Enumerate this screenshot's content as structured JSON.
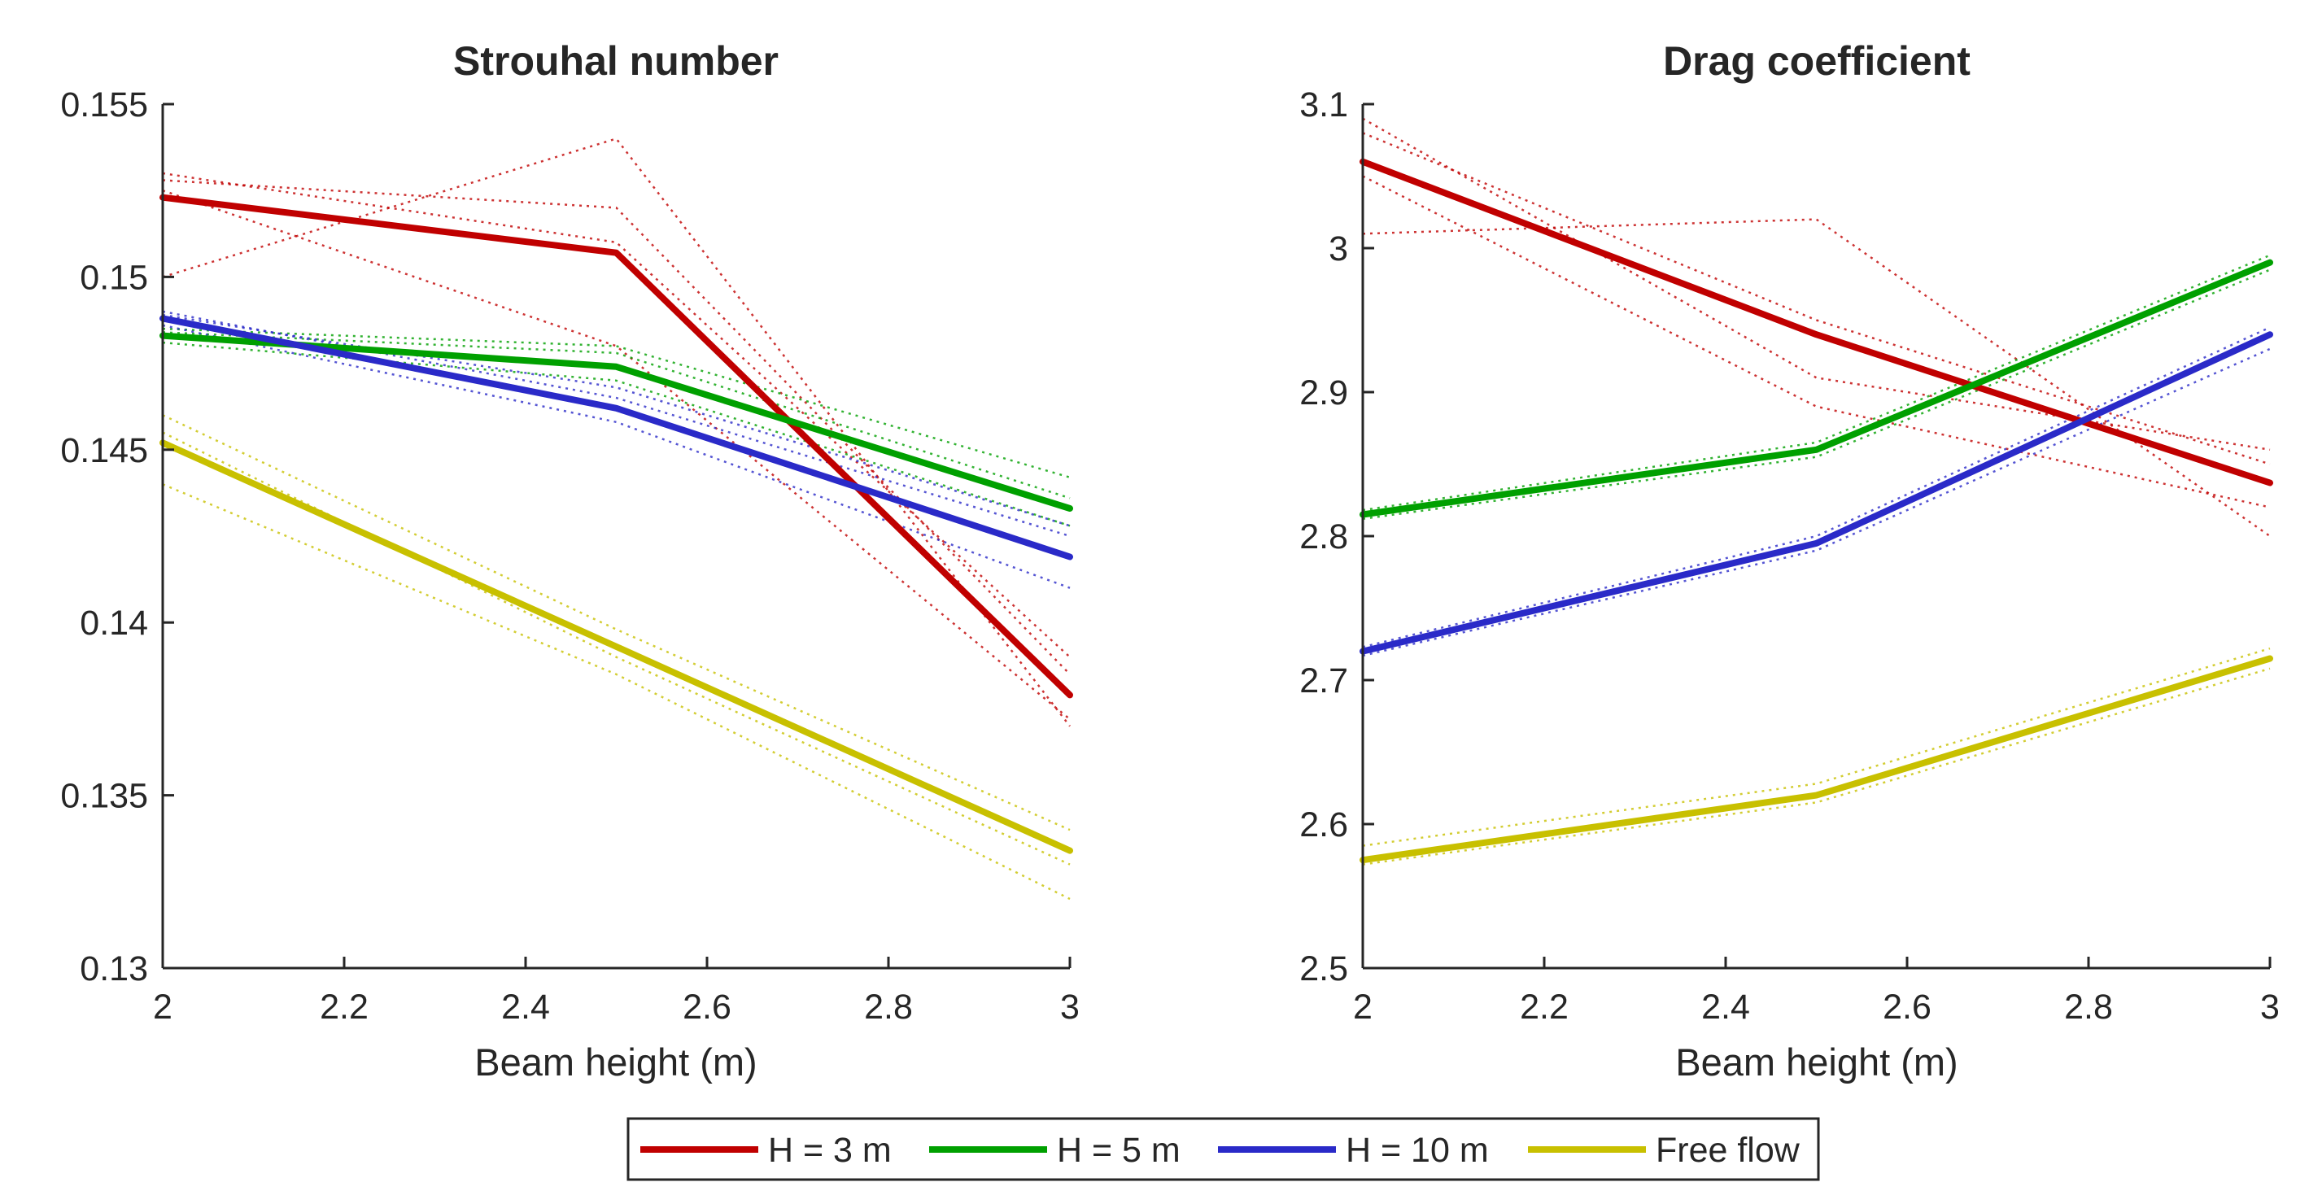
{
  "chart_data": [
    {
      "type": "line",
      "title": "Strouhal number",
      "xlabel": "Beam height (m)",
      "ylabel": "",
      "x": [
        2,
        2.5,
        3
      ],
      "xlim": [
        2,
        3
      ],
      "ylim": [
        0.13,
        0.155
      ],
      "xticks": [
        "2",
        "2.2",
        "2.4",
        "2.6",
        "2.8",
        "3"
      ],
      "yticks": [
        "0.13",
        "0.135",
        "0.14",
        "0.145",
        "0.15",
        "0.155"
      ],
      "grid": false,
      "series": [
        {
          "name": "H = 3 m",
          "color": "#c00000",
          "values": [
            0.1523,
            0.1507,
            0.1379
          ],
          "runs": [
            [
              0.153,
              0.151,
              0.139
            ],
            [
              0.15,
              0.154,
              0.137
            ],
            [
              0.1528,
              0.152,
              0.1385
            ],
            [
              0.1525,
              0.148,
              0.1372
            ]
          ]
        },
        {
          "name": "H = 5 m",
          "color": "#00a000",
          "values": [
            0.1483,
            0.1474,
            0.1433
          ],
          "runs": [
            [
              0.1485,
              0.148,
              0.1442
            ],
            [
              0.1481,
              0.147,
              0.1428
            ],
            [
              0.1484,
              0.1478,
              0.1436
            ]
          ]
        },
        {
          "name": "H = 10 m",
          "color": "#2a2ac8",
          "values": [
            0.1488,
            0.1462,
            0.1419
          ],
          "runs": [
            [
              0.149,
              0.1465,
              0.1425
            ],
            [
              0.1486,
              0.1458,
              0.141
            ],
            [
              0.1489,
              0.1468,
              0.1428
            ]
          ]
        },
        {
          "name": "Free flow",
          "color": "#c8c000",
          "values": [
            0.1452,
            0.1393,
            0.1334
          ],
          "runs": [
            [
              0.146,
              0.1398,
              0.134
            ],
            [
              0.144,
              0.1385,
              0.132
            ],
            [
              0.1455,
              0.139,
              0.133
            ]
          ]
        }
      ]
    },
    {
      "type": "line",
      "title": "Drag coefficient",
      "xlabel": "Beam height (m)",
      "ylabel": "",
      "x": [
        2,
        2.5,
        3
      ],
      "xlim": [
        2,
        3
      ],
      "ylim": [
        2.5,
        3.1
      ],
      "xticks": [
        "2",
        "2.2",
        "2.4",
        "2.6",
        "2.8",
        "3"
      ],
      "yticks": [
        "2.5",
        "2.6",
        "2.7",
        "2.8",
        "2.9",
        "3",
        "3.1"
      ],
      "grid": false,
      "series": [
        {
          "name": "H = 3 m",
          "color": "#c00000",
          "values": [
            3.06,
            2.94,
            2.837
          ],
          "runs": [
            [
              3.09,
              2.91,
              2.86
            ],
            [
              3.01,
              3.02,
              2.8
            ],
            [
              3.08,
              2.95,
              2.85
            ],
            [
              3.05,
              2.89,
              2.82
            ]
          ]
        },
        {
          "name": "H = 5 m",
          "color": "#00a000",
          "values": [
            2.815,
            2.86,
            2.99
          ],
          "runs": [
            [
              2.818,
              2.865,
              2.995
            ],
            [
              2.812,
              2.855,
              2.985
            ]
          ]
        },
        {
          "name": "H = 10 m",
          "color": "#2a2ac8",
          "values": [
            2.72,
            2.795,
            2.94
          ],
          "runs": [
            [
              2.723,
              2.8,
              2.945
            ],
            [
              2.717,
              2.79,
              2.93
            ]
          ]
        },
        {
          "name": "Free flow",
          "color": "#c8c000",
          "values": [
            2.575,
            2.62,
            2.715
          ],
          "runs": [
            [
              2.585,
              2.628,
              2.722
            ],
            [
              2.572,
              2.615,
              2.708
            ]
          ]
        }
      ]
    }
  ],
  "legend": {
    "position": "bottom-center",
    "entries": [
      {
        "label": "H = 3 m",
        "color": "#c00000"
      },
      {
        "label": "H = 5 m",
        "color": "#00a000"
      },
      {
        "label": "H = 10 m",
        "color": "#2a2ac8"
      },
      {
        "label": "Free flow",
        "color": "#c8c000"
      }
    ]
  }
}
